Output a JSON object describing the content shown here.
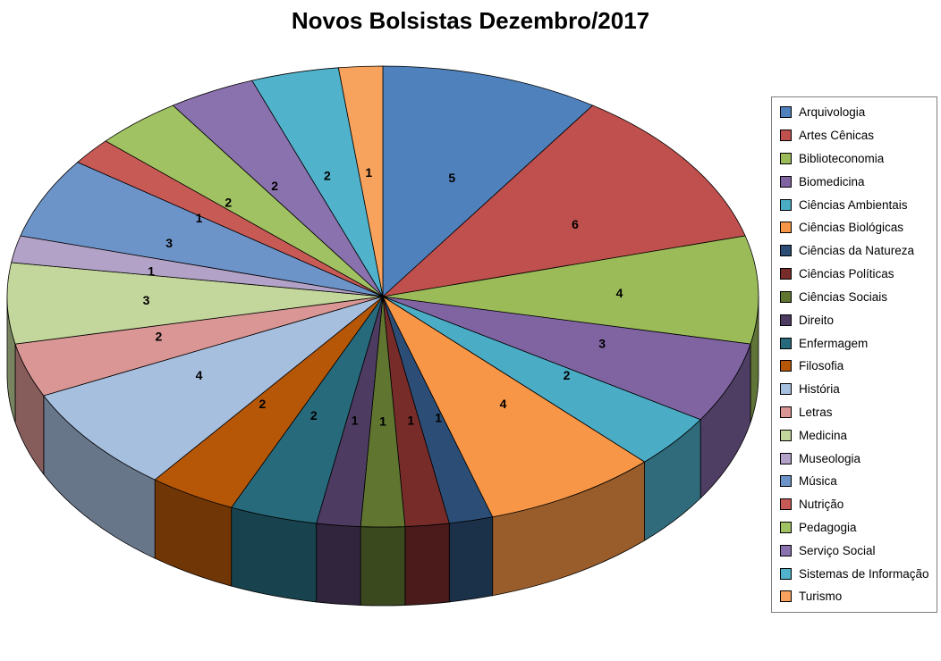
{
  "chart_data": {
    "type": "pie",
    "variant": "pie3d",
    "title": "Novos Bolsistas Dezembro/2017",
    "legend_position": "right",
    "start_angle_deg": -90,
    "direction": "clockwise",
    "total": 53,
    "categories": [
      "Arquivologia",
      "Artes Cênicas",
      "Biblioteconomia",
      "Biomedicina",
      "Ciências Ambientais",
      "Ciências Biológicas",
      "Ciências da Natureza",
      "Ciências Políticas",
      "Ciências Sociais",
      "Direito",
      "Enfermagem",
      "Filosofia",
      "História",
      "Letras",
      "Medicina",
      "Museologia",
      "Música",
      "Nutrição",
      "Pedagogia",
      "Serviço Social",
      "Sistemas de Informação",
      "Turismo"
    ],
    "values": [
      5,
      6,
      4,
      3,
      2,
      4,
      1,
      1,
      1,
      1,
      2,
      2,
      4,
      2,
      3,
      1,
      3,
      1,
      2,
      2,
      2,
      1
    ],
    "colors": [
      "#4F81BD",
      "#C0504D",
      "#9BBB59",
      "#8064A2",
      "#4BACC6",
      "#F79646",
      "#2C4D75",
      "#772C2A",
      "#5F7530",
      "#4D3B62",
      "#276A7C",
      "#B65708",
      "#A7BFDE",
      "#D99694",
      "#C3D69B",
      "#B3A2C7",
      "#6D94C9",
      "#C85A56",
      "#A1C262",
      "#8A72AE",
      "#51B2CC",
      "#F8A35D"
    ]
  }
}
